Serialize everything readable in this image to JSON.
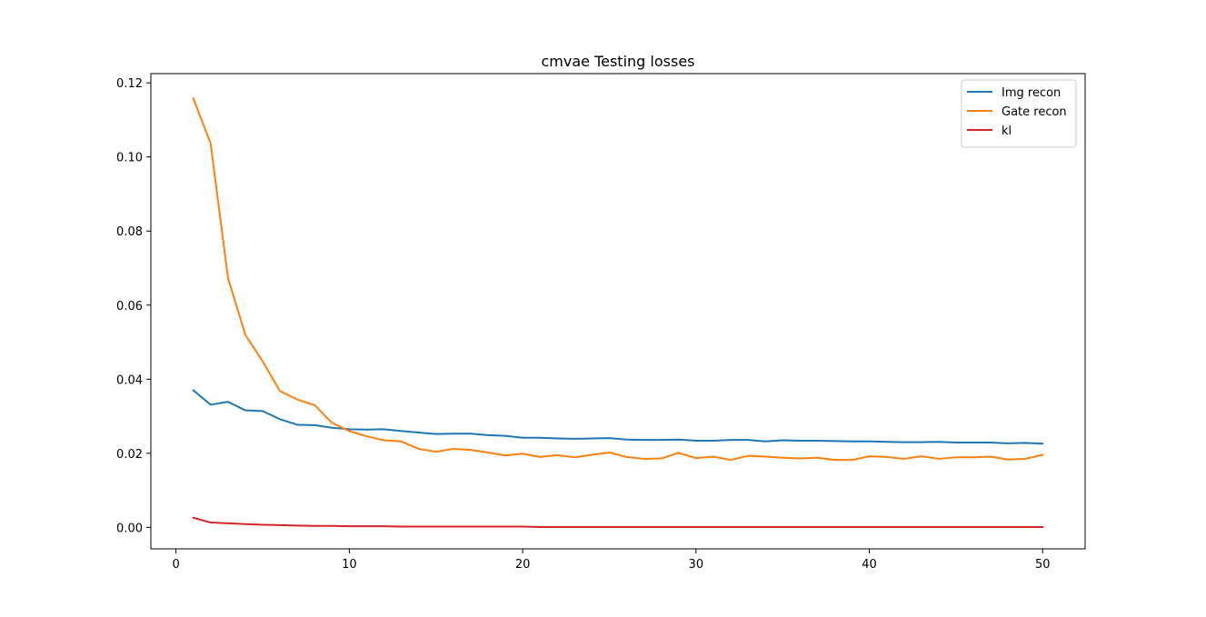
{
  "chart_data": {
    "type": "line",
    "title": "cmvae Testing losses",
    "xlabel": "",
    "ylabel": "",
    "xlim": [
      -1.45,
      52.45
    ],
    "ylim": [
      -0.0058,
      0.1225
    ],
    "xticks": [
      0,
      10,
      20,
      30,
      40,
      50
    ],
    "xtick_labels": [
      "0",
      "10",
      "20",
      "30",
      "40",
      "50"
    ],
    "yticks": [
      0.0,
      0.02,
      0.04,
      0.06,
      0.08,
      0.1,
      0.12
    ],
    "ytick_labels": [
      "0.00",
      "0.02",
      "0.04",
      "0.06",
      "0.08",
      "0.10",
      "0.12"
    ],
    "grid": false,
    "legend_position": "top-right",
    "x": [
      1,
      2,
      3,
      4,
      5,
      6,
      7,
      8,
      9,
      10,
      11,
      12,
      13,
      14,
      15,
      16,
      17,
      18,
      19,
      20,
      21,
      22,
      23,
      24,
      25,
      26,
      27,
      28,
      29,
      30,
      31,
      32,
      33,
      34,
      35,
      36,
      37,
      38,
      39,
      40,
      41,
      42,
      43,
      44,
      45,
      46,
      47,
      48,
      49,
      50
    ],
    "series": [
      {
        "name": "Img recon",
        "color": "#1f77b4",
        "values": [
          0.037,
          0.0331,
          0.0339,
          0.0316,
          0.0314,
          0.0292,
          0.0277,
          0.0276,
          0.0269,
          0.0265,
          0.0264,
          0.0265,
          0.026,
          0.0256,
          0.0252,
          0.0253,
          0.0253,
          0.0249,
          0.0247,
          0.0242,
          0.0242,
          0.024,
          0.0239,
          0.024,
          0.0241,
          0.0237,
          0.0236,
          0.0236,
          0.0237,
          0.0234,
          0.0234,
          0.0236,
          0.0236,
          0.0232,
          0.0235,
          0.0234,
          0.0234,
          0.0233,
          0.0232,
          0.0232,
          0.0231,
          0.023,
          0.023,
          0.0231,
          0.0229,
          0.0229,
          0.0229,
          0.0227,
          0.0228,
          0.0226
        ]
      },
      {
        "name": "Gate recon",
        "color": "#ff7f0e",
        "values": [
          0.1158,
          0.1036,
          0.0673,
          0.052,
          0.0448,
          0.0368,
          0.0345,
          0.033,
          0.0282,
          0.026,
          0.0246,
          0.0235,
          0.0232,
          0.0212,
          0.0204,
          0.0212,
          0.0209,
          0.0202,
          0.0194,
          0.0199,
          0.019,
          0.0195,
          0.0189,
          0.0196,
          0.0202,
          0.019,
          0.0185,
          0.0186,
          0.0201,
          0.0187,
          0.0191,
          0.0182,
          0.0193,
          0.0191,
          0.0188,
          0.0186,
          0.0188,
          0.0182,
          0.0182,
          0.0192,
          0.019,
          0.0185,
          0.0192,
          0.0185,
          0.0189,
          0.0189,
          0.0191,
          0.0183,
          0.0185,
          0.0196
        ]
      },
      {
        "name": "kl",
        "color": "#d62728",
        "values": [
          0.0026,
          0.0013,
          0.0011,
          0.0009,
          0.0007,
          0.0006,
          0.0005,
          0.0004,
          0.0004,
          0.0003,
          0.0003,
          0.0003,
          0.0002,
          0.0002,
          0.0002,
          0.0002,
          0.0002,
          0.0002,
          0.0002,
          0.0002,
          0.0001,
          0.0001,
          0.0001,
          0.0001,
          0.0001,
          0.0001,
          0.0001,
          0.0001,
          0.0001,
          0.0001,
          0.0001,
          0.0001,
          0.0001,
          0.0001,
          0.0001,
          0.0001,
          0.0001,
          0.0001,
          0.0001,
          0.0001,
          0.0001,
          0.0001,
          0.0001,
          0.0001,
          0.0001,
          0.0001,
          0.0001,
          0.0001,
          0.0001,
          0.0001
        ]
      }
    ]
  }
}
